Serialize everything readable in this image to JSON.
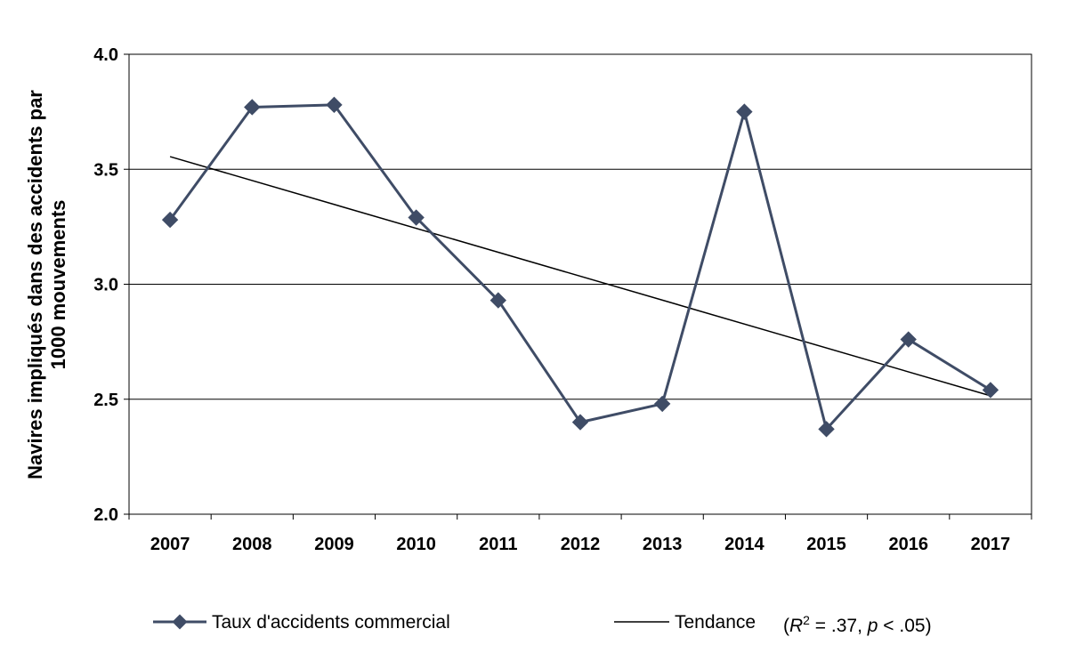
{
  "chart_data": {
    "type": "line",
    "categories": [
      "2007",
      "2008",
      "2009",
      "2010",
      "2011",
      "2012",
      "2013",
      "2014",
      "2015",
      "2016",
      "2017"
    ],
    "series": [
      {
        "name": "Taux d'accidents commercial",
        "values": [
          3.28,
          3.77,
          3.78,
          3.29,
          2.93,
          2.4,
          2.48,
          3.75,
          2.37,
          2.76,
          2.54
        ],
        "color": "#3f4c66"
      }
    ],
    "trend": {
      "name": "Tendance",
      "start": 3.555,
      "end": 2.515,
      "color": "#000000",
      "stats": {
        "r_label": "R",
        "r_exp": "2",
        "r_value": " = .37, ",
        "p_label": "p",
        "p_value": " < .05)",
        "open_paren": "("
      }
    },
    "ylabel_line1": "Navires impliqués dans des accidents par",
    "ylabel_line2": "1000 mouvements",
    "ylim": [
      2.0,
      4.0
    ],
    "yticks": [
      2.0,
      2.5,
      3.0,
      3.5,
      4.0
    ],
    "ytick_labels": [
      "2.0",
      "2.5",
      "3.0",
      "3.5",
      "4.0"
    ],
    "grid": true,
    "legend_position": "bottom"
  }
}
